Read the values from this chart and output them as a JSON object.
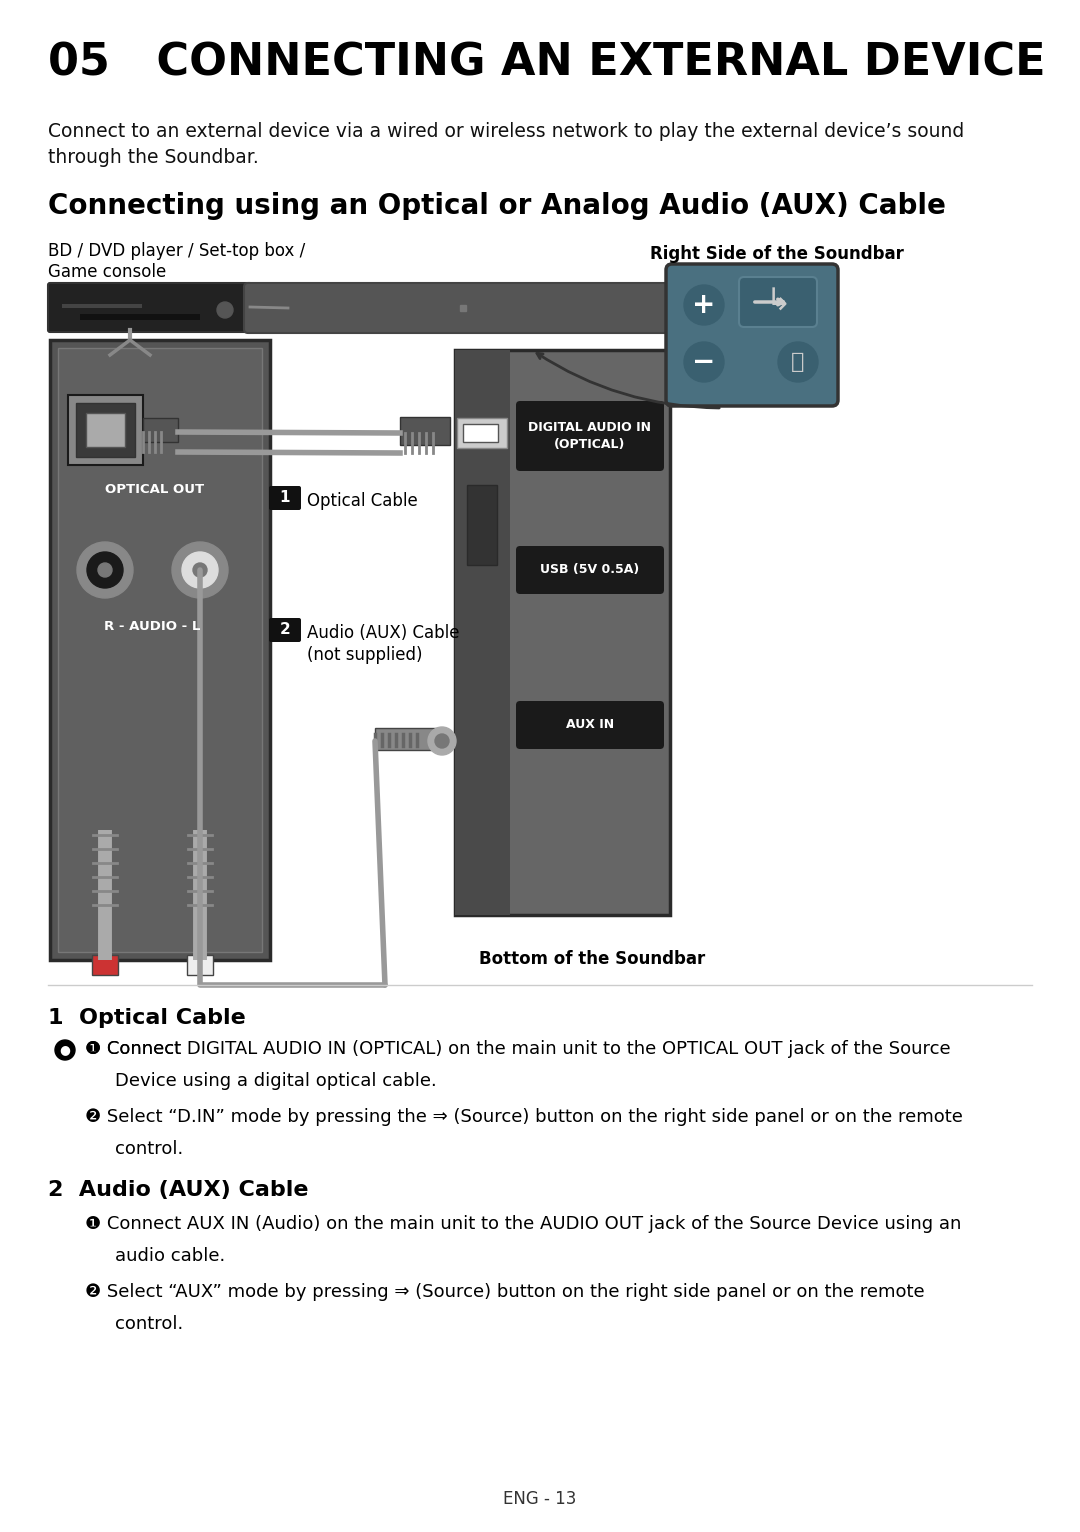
{
  "bg_color": "#ffffff",
  "page_width": 10.8,
  "page_height": 15.32,
  "title": "05   CONNECTING AN EXTERNAL DEVICE",
  "subtitle_line1": "Connect to an external device via a wired or wireless network to play the external device’s sound",
  "subtitle_line2": "through the Soundbar.",
  "section_title": "Connecting using an Optical or Analog Audio (AUX) Cable",
  "label_bd": "BD / DVD player / Set-top box /",
  "label_gc": "Game console",
  "label_right": "Right Side of the Soundbar",
  "label_optical_cable": "Optical Cable",
  "label_audio_cable_1": "Audio (AUX) Cable",
  "label_audio_cable_2": "(not supplied)",
  "label_bottom": "Bottom of the Soundbar",
  "label_optical_out": "OPTICAL OUT",
  "label_r_audio_l": "R - AUDIO - L",
  "label_digital_audio": "DIGITAL AUDIO IN\n(OPTICAL)",
  "label_usb": "USB (5V 0.5A)",
  "label_aux_in": "AUX IN",
  "footer": "ENG - 13",
  "s1_title": "1  Optical Cable",
  "s2_title": "2  Audio (AUX) Cable"
}
